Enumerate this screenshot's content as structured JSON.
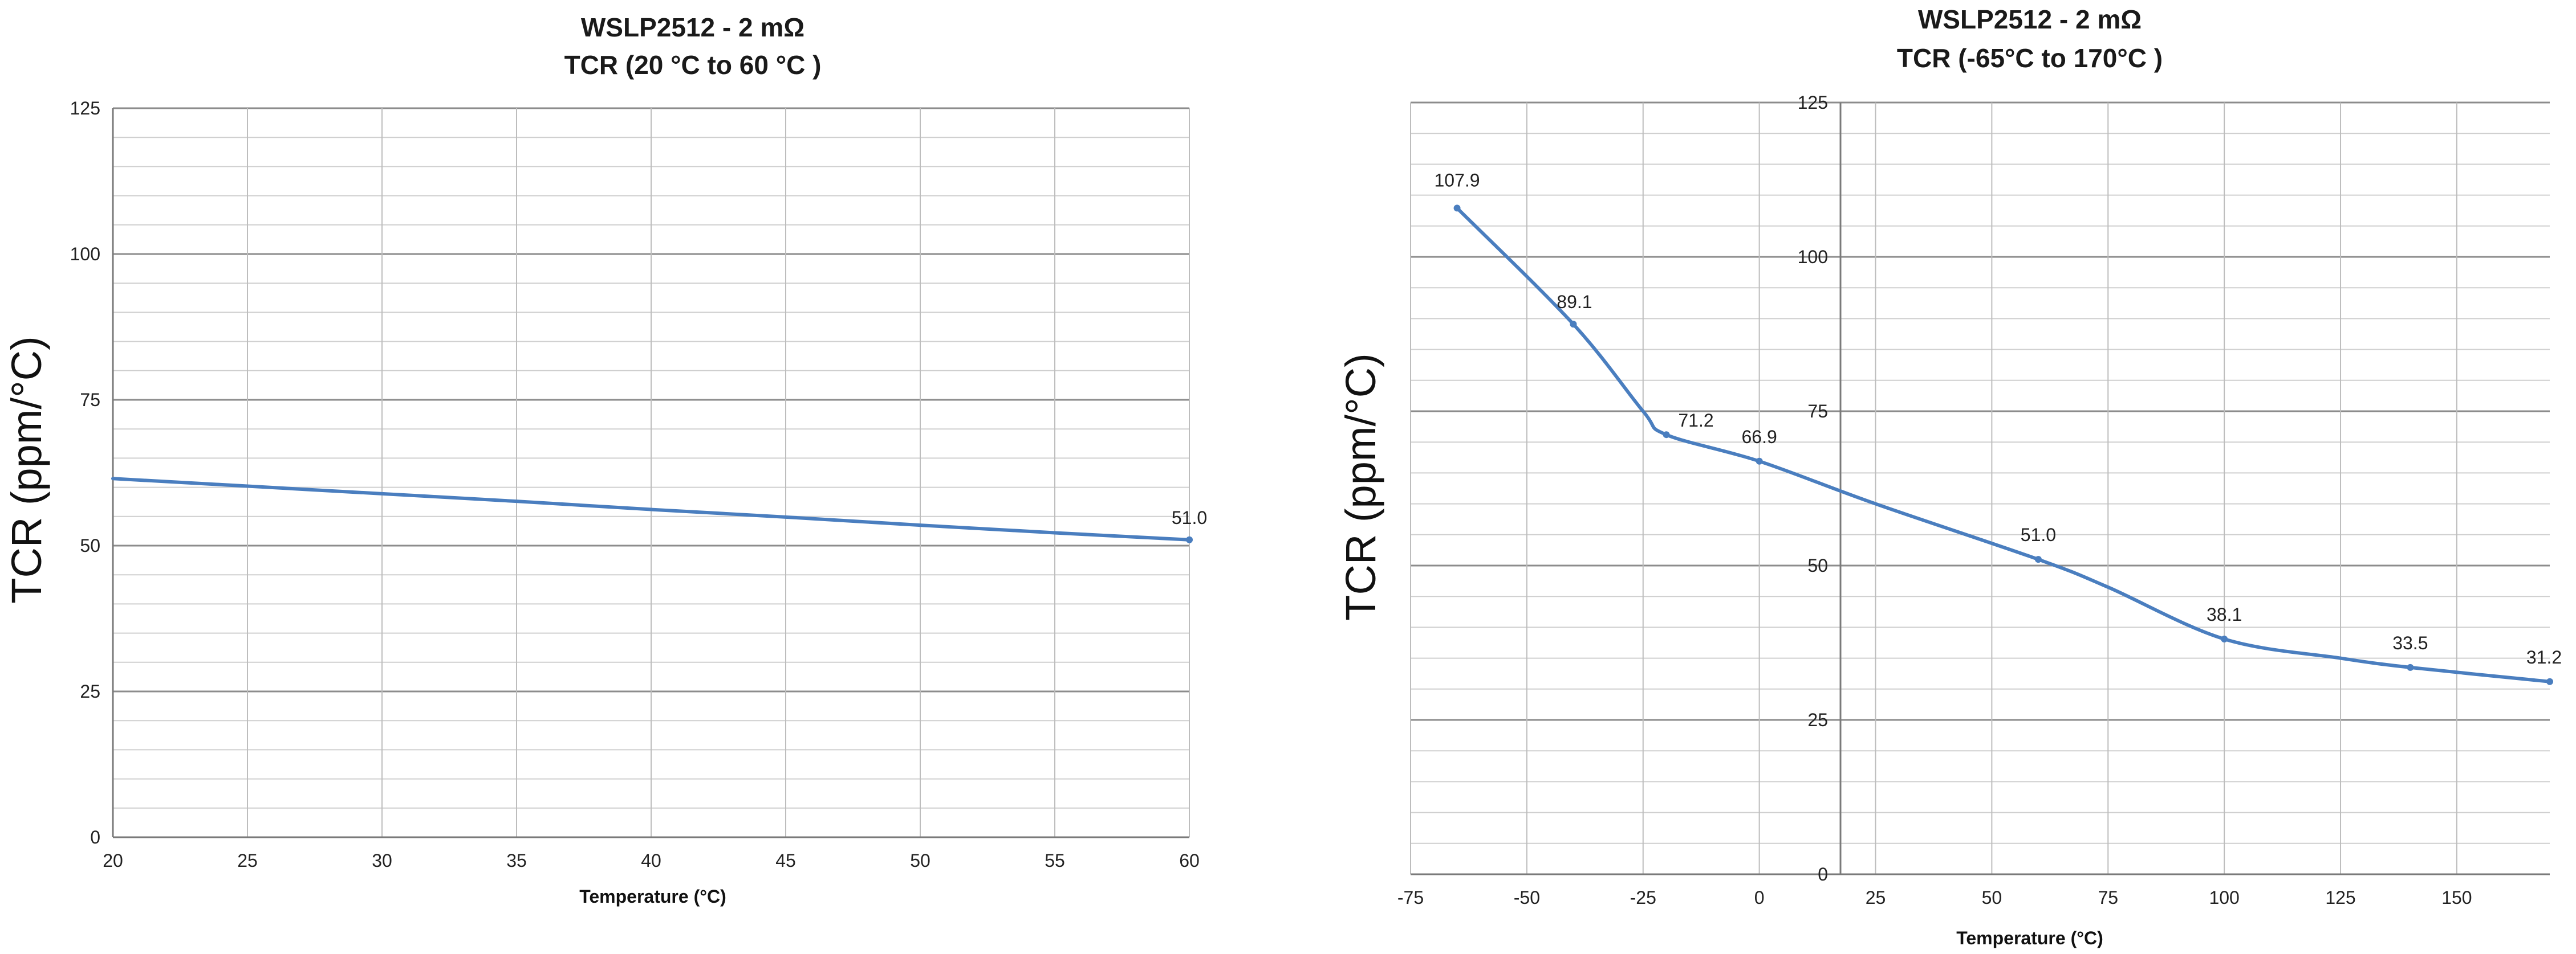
{
  "chart_data": [
    {
      "type": "line",
      "title": "WSLP2512 - 2 mΩ",
      "subtitle": "TCR (20 °C to 60 °C )",
      "xlabel": "Temperature (°C)",
      "ylabel": "TCR (ppm/°C)",
      "xlim": [
        20,
        60
      ],
      "ylim": [
        0,
        125
      ],
      "x_ticks": [
        "20",
        "25",
        "30",
        "35",
        "40",
        "45",
        "50",
        "55",
        "60"
      ],
      "y_ticks": [
        "0",
        "25",
        "50",
        "75",
        "100",
        "125"
      ],
      "grid": true,
      "legend": "none",
      "color": "#4a7ebf",
      "series": [
        {
          "x": [
            20,
            25,
            30,
            35,
            40,
            45,
            50,
            55,
            60
          ],
          "values": [
            61.5,
            60.2,
            58.9,
            57.6,
            56.2,
            54.9,
            53.5,
            52.2,
            51.0
          ]
        }
      ],
      "data_labels": [
        {
          "x": 60,
          "y": 51.0,
          "text": "51.0"
        }
      ]
    },
    {
      "type": "line",
      "title": "WSLP2512 - 2 mΩ",
      "subtitle": "TCR (-65°C to 170°C )",
      "xlabel": "Temperature (°C)",
      "ylabel": "TCR (ppm/°C)",
      "xlim": [
        -75,
        170
      ],
      "ylim": [
        0,
        125
      ],
      "x_ticks": [
        "-75",
        "-50",
        "-25",
        "0",
        "25",
        "50",
        "75",
        "100",
        "125",
        "150"
      ],
      "y_ticks": [
        "0",
        "25",
        "50",
        "75",
        "100",
        "125"
      ],
      "grid": true,
      "legend": "none",
      "color": "#4a7ebf",
      "series": [
        {
          "x": [
            -65,
            -40,
            -25,
            -20,
            0,
            25,
            60,
            75,
            100,
            125,
            140,
            170
          ],
          "values": [
            107.9,
            89.1,
            75.0,
            71.2,
            66.9,
            60.0,
            51.0,
            46.5,
            38.1,
            35.0,
            33.5,
            31.2
          ]
        }
      ],
      "data_labels": [
        {
          "x": -65,
          "y": 107.9,
          "text": "107.9"
        },
        {
          "x": -40,
          "y": 89.1,
          "text": "89.1"
        },
        {
          "x": -20,
          "y": 71.2,
          "text": "71.2"
        },
        {
          "x": 0,
          "y": 66.9,
          "text": "66.9"
        },
        {
          "x": 60,
          "y": 51.0,
          "text": "51.0"
        },
        {
          "x": 100,
          "y": 38.1,
          "text": "38.1"
        },
        {
          "x": 140,
          "y": 33.5,
          "text": "33.5"
        },
        {
          "x": 170,
          "y": 31.2,
          "text": "31.2"
        }
      ]
    }
  ]
}
